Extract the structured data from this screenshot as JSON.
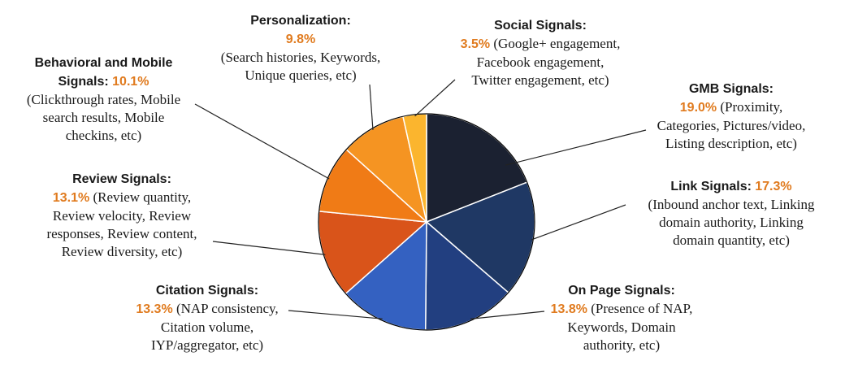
{
  "chart_data": {
    "type": "pie",
    "start_angle_deg": 0,
    "direction": "clockwise",
    "slices": [
      {
        "name": "GMB Signals:",
        "value": 19.0,
        "value_label": "19.0%",
        "color": "#1b2131",
        "detail_first": "(Proximity,",
        "detail": [
          "Categories, Pictures/video,",
          "Listing description, etc)"
        ]
      },
      {
        "name": "Link Signals:",
        "value": 17.3,
        "value_label": "17.3%",
        "color": "#1f3864",
        "detail": [
          "(Inbound anchor text, Linking",
          "domain authority, Linking",
          "domain quantity, etc)"
        ]
      },
      {
        "name": "On Page Signals:",
        "value": 13.8,
        "value_label": "13.8%",
        "color": "#223f80",
        "detail_first": "(Presence of NAP,",
        "detail": [
          "Keywords, Domain",
          "authority, etc)"
        ]
      },
      {
        "name": "Citation Signals:",
        "value": 13.3,
        "value_label": "13.3%",
        "color": "#3461c1",
        "detail_first": "(NAP consistency,",
        "detail": [
          "Citation volume,",
          "IYP/aggregator, etc)"
        ]
      },
      {
        "name": "Review Signals:",
        "value": 13.1,
        "value_label": "13.1%",
        "color": "#d9541a",
        "detail_first": "(Review quantity,",
        "detail": [
          "Review velocity, Review",
          "responses, Review content,",
          "Review diversity, etc)"
        ]
      },
      {
        "name": "Behavioral and Mobile",
        "name2": "Signals",
        "value": 10.1,
        "value_label": "10.1%",
        "color": "#f07b16",
        "detail": [
          "(Clickthrough rates, Mobile",
          "search results, Mobile",
          "checkins, etc)"
        ]
      },
      {
        "name": "Personalization:",
        "value": 9.8,
        "value_label": "9.8%",
        "color": "#f59422",
        "detail": [
          "(Search histories, Keywords,",
          "Unique queries, etc)"
        ]
      },
      {
        "name": "Social Signals:",
        "value": 3.5,
        "value_label": "3.5%",
        "color": "#fbb52e",
        "detail_first": "(Google+ engagement,",
        "detail": [
          "Facebook engagement,",
          "Twitter engagement, etc)"
        ]
      }
    ]
  }
}
